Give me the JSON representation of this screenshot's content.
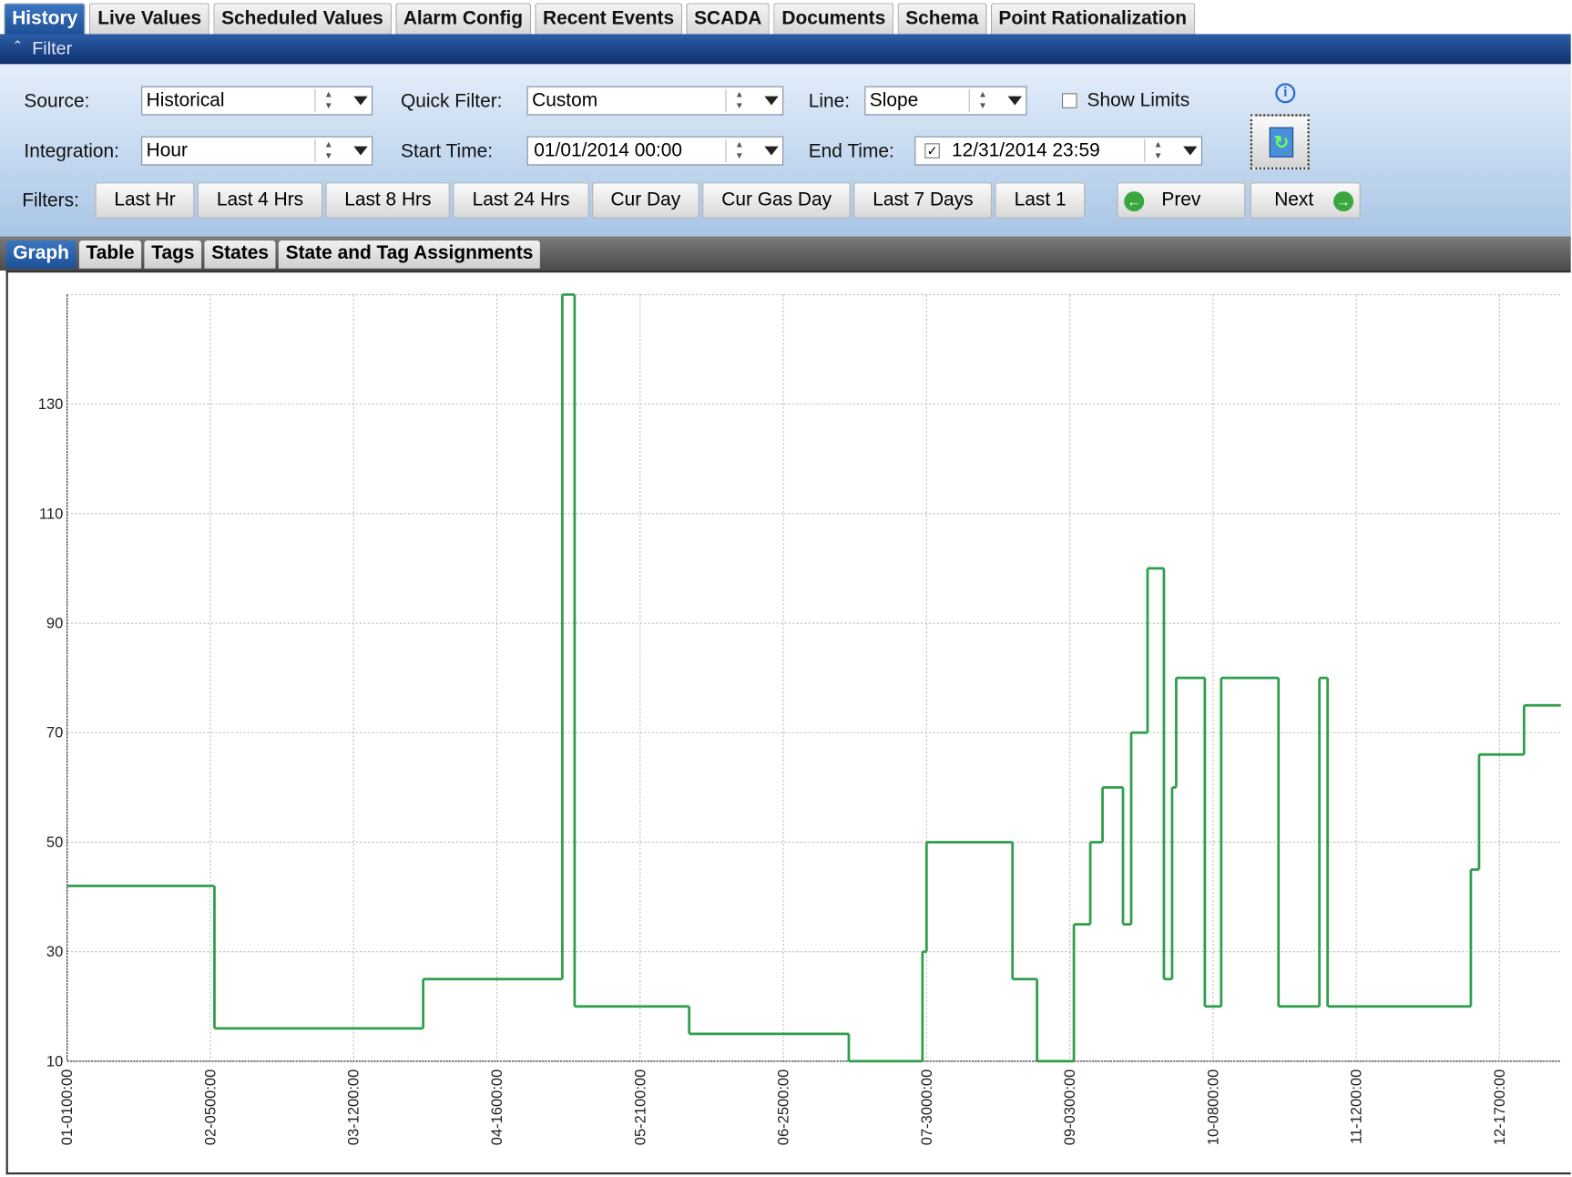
{
  "tabs": [
    "History",
    "Live Values",
    "Scheduled Values",
    "Alarm Config",
    "Recent Events",
    "SCADA",
    "Documents",
    "Schema",
    "Point Rationalization"
  ],
  "filter": {
    "title": "Filter",
    "source_label": "Source:",
    "source": "Historical",
    "quick_filter_label": "Quick Filter:",
    "quick_filter": "Custom",
    "line_label": "Line:",
    "line": "Slope",
    "show_limits": "Show Limits",
    "integration_label": "Integration:",
    "integration": "Hour",
    "start_time_label": "Start Time:",
    "start_time": "01/01/2014 00:00",
    "end_time_label": "End Time:",
    "end_time": "12/31/2014 23:59",
    "filters_label": "Filters:",
    "buttons": [
      "Last Hr",
      "Last 4 Hrs",
      "Last 8 Hrs",
      "Last 24 Hrs",
      "Cur Day",
      "Cur Gas Day",
      "Last 7 Days",
      "Last 1"
    ],
    "prev": "Prev",
    "next": "Next"
  },
  "subtabs": [
    "Graph",
    "Table",
    "Tags",
    "States",
    "State and Tag Assignments"
  ],
  "chart_data": {
    "type": "line",
    "step": "post",
    "color": "#2e9e4a",
    "grid": true,
    "x": [
      0,
      36,
      87,
      121,
      124,
      152,
      191,
      209,
      210,
      231,
      237,
      246,
      250,
      253,
      258,
      260,
      264,
      268,
      270,
      271,
      278,
      282,
      296,
      306,
      308,
      343,
      345,
      356
    ],
    "values": [
      42,
      16,
      25,
      150,
      20,
      15,
      10,
      30,
      50,
      25,
      10,
      35,
      50,
      60,
      35,
      70,
      100,
      25,
      60,
      80,
      20,
      80,
      20,
      80,
      20,
      45,
      66,
      75
    ],
    "xlim": [
      0,
      365
    ],
    "xticks": [
      {
        "value": 0,
        "label": "01-0100:00"
      },
      {
        "value": 35,
        "label": "02-0500:00"
      },
      {
        "value": 70,
        "label": "03-1200:00"
      },
      {
        "value": 105,
        "label": "04-1600:00"
      },
      {
        "value": 140,
        "label": "05-2100:00"
      },
      {
        "value": 175,
        "label": "06-2500:00"
      },
      {
        "value": 210,
        "label": "07-3000:00"
      },
      {
        "value": 245,
        "label": "09-0300:00"
      },
      {
        "value": 280,
        "label": "10-0800:00"
      },
      {
        "value": 315,
        "label": "11-1200:00"
      },
      {
        "value": 350,
        "label": "12-1700:00"
      }
    ],
    "ylim": [
      10,
      150
    ],
    "yticks": [
      10,
      30,
      50,
      70,
      90,
      110,
      130
    ]
  }
}
